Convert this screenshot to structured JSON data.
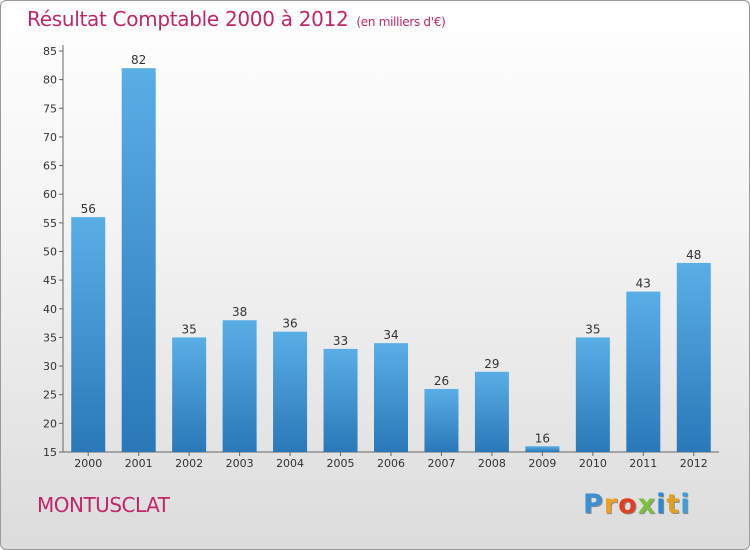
{
  "chart_data": {
    "type": "bar",
    "title": "Résultat Comptable 2000 à 2012",
    "subtitle": "(en milliers d'€)",
    "categories": [
      "2000",
      "2001",
      "2002",
      "2003",
      "2004",
      "2005",
      "2006",
      "2007",
      "2008",
      "2009",
      "2010",
      "2011",
      "2012"
    ],
    "values": [
      56,
      82,
      35,
      38,
      36,
      33,
      34,
      26,
      29,
      16,
      35,
      43,
      48
    ],
    "ylim": [
      15,
      85
    ],
    "yticks": [
      15,
      20,
      25,
      30,
      35,
      40,
      45,
      50,
      55,
      60,
      65,
      70,
      75,
      80,
      85
    ],
    "grid": false,
    "colors": {
      "bar_light": "#5aaee6",
      "bar_dark": "#2a78b8",
      "title": "#c0266a"
    }
  },
  "footer": {
    "commune": "MONTUSCLAT",
    "logo_letters": [
      "P",
      "r",
      "o",
      "x",
      "i",
      "t",
      "i"
    ],
    "logo_colors": [
      "#3b8fd4",
      "#f0a020",
      "#e04020",
      "#7cc040",
      "#2a8ad0",
      "#e0a020",
      "#3aa0d8"
    ]
  }
}
